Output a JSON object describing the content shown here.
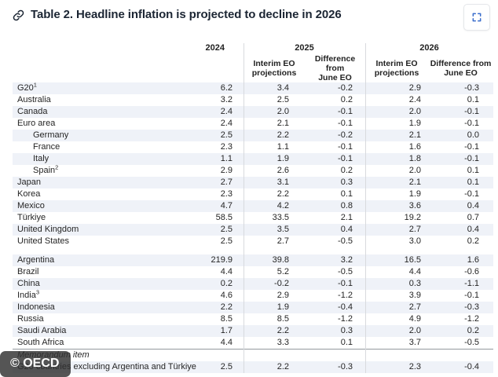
{
  "header": {
    "title": "Table 2. Headline inflation is projected to decline in 2026"
  },
  "watermark": "© OECD",
  "colors": {
    "title_text": "#1b2533",
    "row_shading": "#eff2f8",
    "column_divider": "#d8dade",
    "fullscreen_icon": "#3b6ecc",
    "watermark_bg": "rgba(47,47,47,0.82)"
  },
  "chart_data": {
    "type": "table",
    "title": "Table 2. Headline inflation is projected to decline in 2026",
    "col_groups": [
      {
        "label": "2024",
        "span": 1
      },
      {
        "label": "2025",
        "span": 2
      },
      {
        "label": "2026",
        "span": 2
      }
    ],
    "sub_headers": [
      "Interim EO\nprojections",
      "Difference from\nJune EO",
      "Interim EO\nprojections",
      "Difference from\nJune EO"
    ],
    "columns": [
      "",
      "2024",
      "2025 Interim EO projections",
      "2025 Difference from June EO",
      "2026 Interim EO projections",
      "2026 Difference from June EO"
    ],
    "rows": [
      {
        "label": "G20",
        "sup": "1",
        "shaded": true,
        "values": [
          "6.2",
          "3.4",
          "-0.2",
          "2.9",
          "-0.3"
        ]
      },
      {
        "label": "Australia",
        "values": [
          "3.2",
          "2.5",
          "0.2",
          "2.4",
          "0.1"
        ]
      },
      {
        "label": "Canada",
        "shaded": true,
        "values": [
          "2.4",
          "2.0",
          "-0.1",
          "2.0",
          "-0.1"
        ]
      },
      {
        "label": "Euro area",
        "values": [
          "2.4",
          "2.1",
          "-0.1",
          "1.9",
          "-0.1"
        ]
      },
      {
        "label": "Germany",
        "indent": true,
        "shaded": true,
        "values": [
          "2.5",
          "2.2",
          "-0.2",
          "2.1",
          "0.0"
        ]
      },
      {
        "label": "France",
        "indent": true,
        "values": [
          "2.3",
          "1.1",
          "-0.1",
          "1.6",
          "-0.1"
        ]
      },
      {
        "label": "Italy",
        "indent": true,
        "shaded": true,
        "values": [
          "1.1",
          "1.9",
          "-0.1",
          "1.8",
          "-0.1"
        ]
      },
      {
        "label": "Spain",
        "sup": "2",
        "indent": true,
        "values": [
          "2.9",
          "2.6",
          "0.2",
          "2.0",
          "0.1"
        ]
      },
      {
        "label": "Japan",
        "shaded": true,
        "values": [
          "2.7",
          "3.1",
          "0.3",
          "2.1",
          "0.1"
        ]
      },
      {
        "label": "Korea",
        "values": [
          "2.3",
          "2.2",
          "0.1",
          "1.9",
          "-0.1"
        ]
      },
      {
        "label": "Mexico",
        "shaded": true,
        "values": [
          "4.7",
          "4.2",
          "0.8",
          "3.6",
          "0.4"
        ]
      },
      {
        "label": "Türkiye",
        "values": [
          "58.5",
          "33.5",
          "2.1",
          "19.2",
          "0.7"
        ]
      },
      {
        "label": "United Kingdom",
        "shaded": true,
        "values": [
          "2.5",
          "3.5",
          "0.4",
          "2.7",
          "0.4"
        ]
      },
      {
        "label": "United States",
        "values": [
          "2.5",
          "2.7",
          "-0.5",
          "3.0",
          "0.2"
        ]
      },
      {
        "label": "Argentina",
        "gap_before": true,
        "shaded": true,
        "values": [
          "219.9",
          "39.8",
          "3.2",
          "16.5",
          "1.6"
        ]
      },
      {
        "label": "Brazil",
        "values": [
          "4.4",
          "5.2",
          "-0.5",
          "4.4",
          "-0.6"
        ]
      },
      {
        "label": "China",
        "shaded": true,
        "values": [
          "0.2",
          "-0.2",
          "-0.1",
          "0.3",
          "-1.1"
        ]
      },
      {
        "label": "India",
        "sup": "3",
        "values": [
          "4.6",
          "2.9",
          "-1.2",
          "3.9",
          "-0.1"
        ]
      },
      {
        "label": "Indonesia",
        "shaded": true,
        "values": [
          "2.2",
          "1.9",
          "-0.4",
          "2.7",
          "-0.3"
        ]
      },
      {
        "label": "Russia",
        "values": [
          "8.5",
          "8.5",
          "-1.2",
          "4.9",
          "-1.2"
        ]
      },
      {
        "label": "Saudi Arabia",
        "shaded": true,
        "values": [
          "1.7",
          "2.2",
          "0.3",
          "2.0",
          "0.2"
        ]
      },
      {
        "label": "South Africa",
        "values": [
          "4.4",
          "3.3",
          "0.1",
          "3.7",
          "-0.5"
        ]
      },
      {
        "label": "Memorandum item",
        "italic": true,
        "rule_before": true,
        "values": []
      },
      {
        "label": "G20 countries excluding Argentina and Türkiye",
        "shaded": true,
        "values": [
          "2.5",
          "2.2",
          "-0.3",
          "2.3",
          "-0.4"
        ]
      }
    ]
  }
}
